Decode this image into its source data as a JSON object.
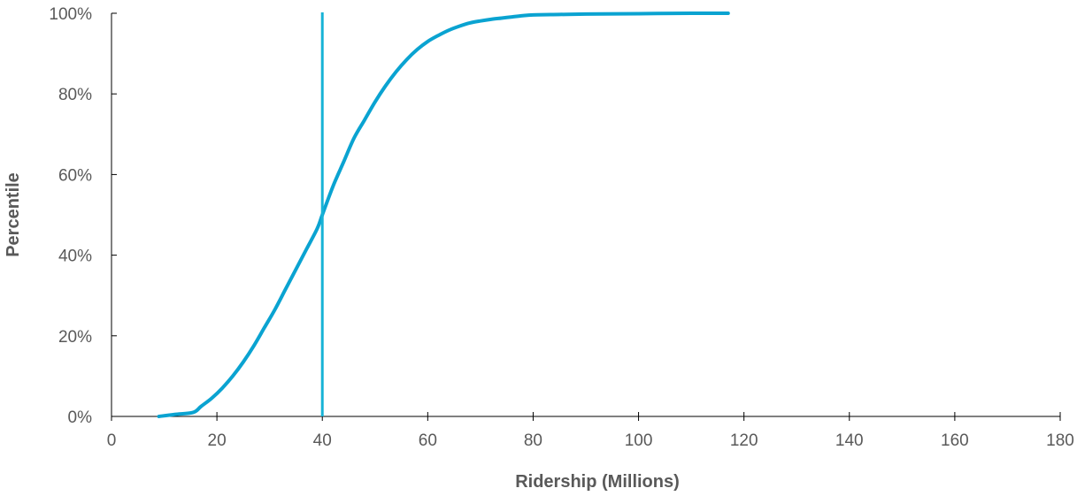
{
  "chart_data": {
    "type": "line",
    "title": "",
    "xlabel": "Ridership (Millions)",
    "ylabel": "Percentile",
    "xlim": [
      0,
      180
    ],
    "ylim": [
      0,
      100
    ],
    "x_ticks": [
      0,
      20,
      40,
      60,
      80,
      100,
      120,
      140,
      160,
      180
    ],
    "x_tick_labels": [
      "0",
      "20",
      "40",
      "60",
      "80",
      "100",
      "120",
      "140",
      "160",
      "180"
    ],
    "y_ticks": [
      0,
      20,
      40,
      60,
      80,
      100
    ],
    "y_tick_labels": [
      "0%",
      "20%",
      "40%",
      "60%",
      "80%",
      "100%"
    ],
    "grid": false,
    "legend": "none",
    "series": [
      {
        "color": "#0AA3D1",
        "x": [
          9,
          12,
          15.5,
          17,
          19,
          21,
          23,
          25,
          27,
          29,
          31,
          33,
          35,
          37,
          39,
          40,
          42,
          44,
          46,
          48,
          50,
          52,
          54,
          56,
          58,
          60,
          62,
          64,
          66,
          68,
          70,
          72,
          74,
          76,
          78,
          80,
          85,
          90,
          100,
          110,
          117
        ],
        "y": [
          0,
          0.5,
          1,
          2.5,
          4.5,
          7,
          10,
          13.5,
          17.5,
          22,
          26.5,
          31.5,
          36.5,
          41.5,
          46.5,
          50,
          57,
          63,
          69,
          73.5,
          78,
          82,
          85.5,
          88.5,
          91,
          93,
          94.5,
          95.8,
          96.8,
          97.6,
          98.1,
          98.5,
          98.8,
          99.1,
          99.4,
          99.6,
          99.7,
          99.8,
          99.9,
          100,
          100
        ]
      }
    ],
    "reference_line": {
      "axis": "x",
      "value": 40,
      "color": "#17B3D6"
    }
  }
}
